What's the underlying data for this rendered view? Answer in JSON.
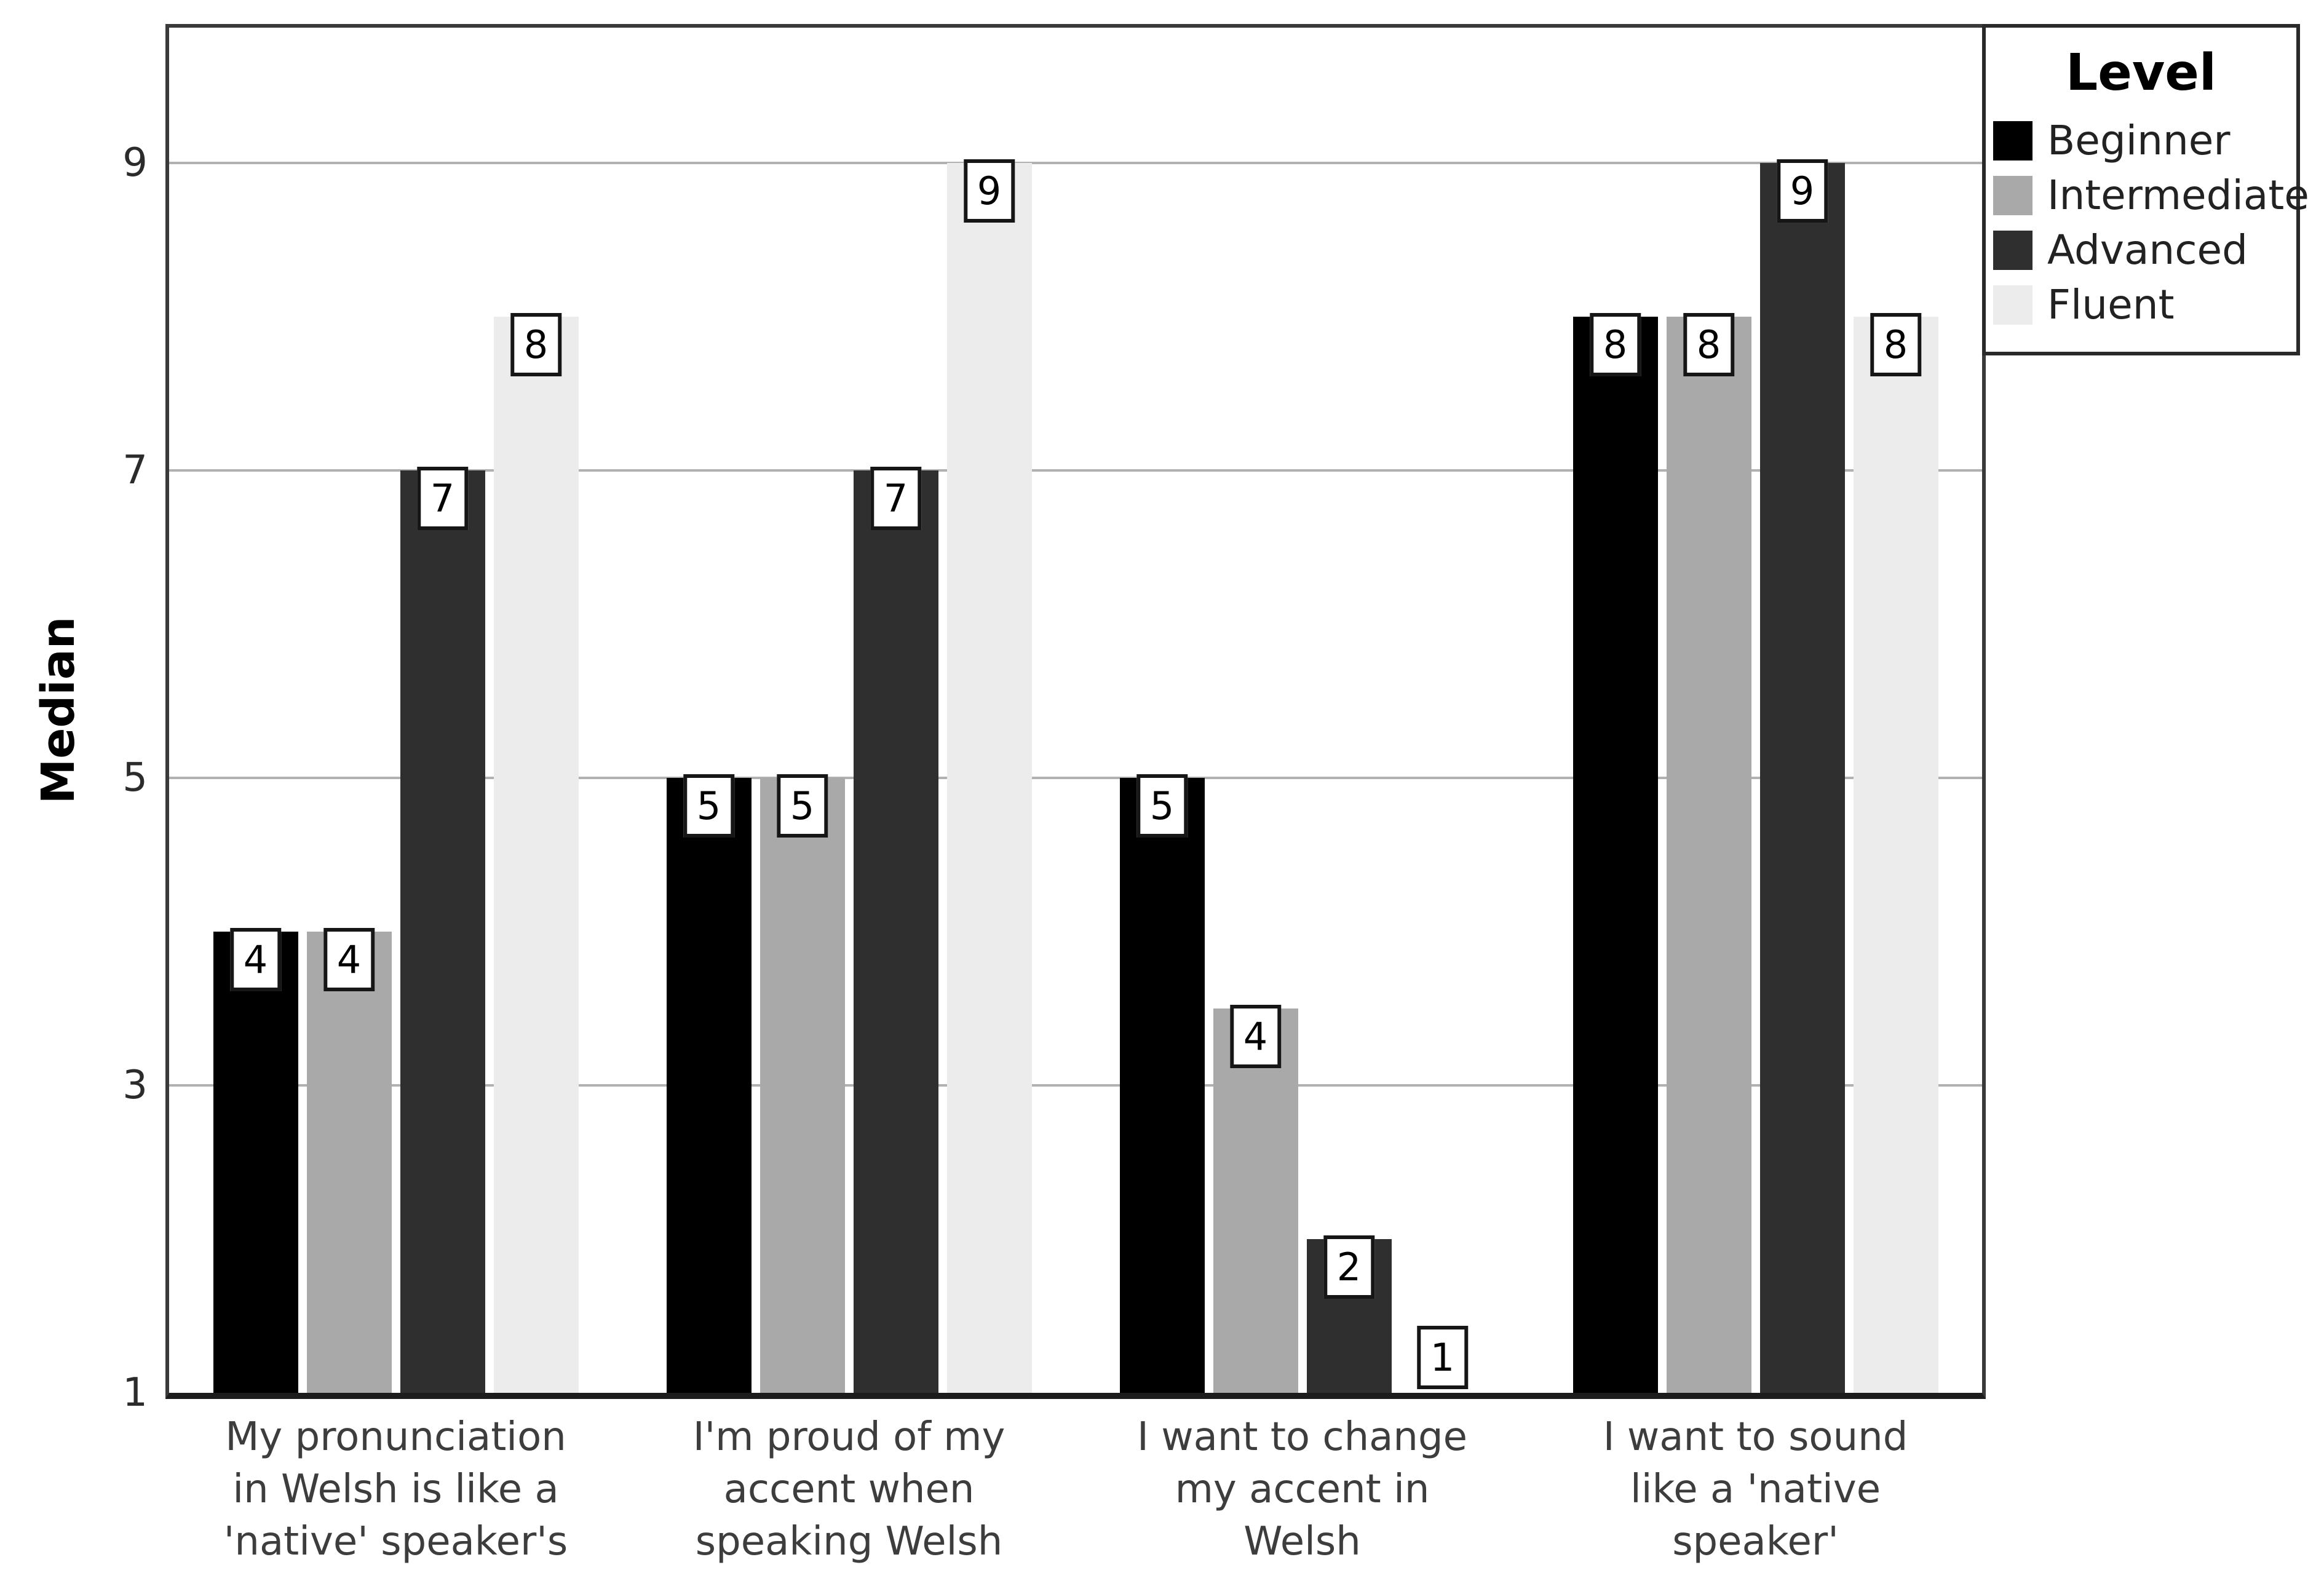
{
  "figure": {
    "ylabel": "Median",
    "background": "#ffffff",
    "gridline_color": "#b1b1b1",
    "value_label_style": "boxed number at top of bar"
  },
  "chart_data": {
    "type": "bar",
    "title": "",
    "xlabel": "",
    "ylabel": "Median",
    "ylim": [
      1,
      9.88
    ],
    "yticks": [
      1,
      3,
      5,
      7,
      9
    ],
    "grid": "horizontal",
    "legend_title": "Level",
    "legend_position": "top-right",
    "baseline": 1,
    "categories": [
      "My pronunciation\nin Welsh is like a\n'native' speaker's",
      "I'm proud of my\naccent when\nspeaking Welsh",
      "I want to change\nmy accent in\nWelsh",
      "I want to sound\nlike a 'native\nspeaker'"
    ],
    "series": [
      {
        "name": "Beginner",
        "color": "#000000",
        "values": [
          4,
          5,
          5,
          8
        ],
        "labels": [
          "4",
          "5",
          "5",
          "8"
        ]
      },
      {
        "name": "Intermediate",
        "color": "#a9a9a9",
        "values": [
          4,
          5,
          3.5,
          8
        ],
        "labels": [
          "4",
          "5",
          "4",
          "8"
        ]
      },
      {
        "name": "Advanced",
        "color": "#2f2f2f",
        "values": [
          7,
          7,
          2,
          9
        ],
        "labels": [
          "7",
          "7",
          "2",
          "9"
        ]
      },
      {
        "name": "Fluent",
        "color": "#ececec",
        "values": [
          8,
          9,
          1,
          8
        ],
        "labels": [
          "8",
          "9",
          "1",
          "8"
        ]
      }
    ]
  }
}
